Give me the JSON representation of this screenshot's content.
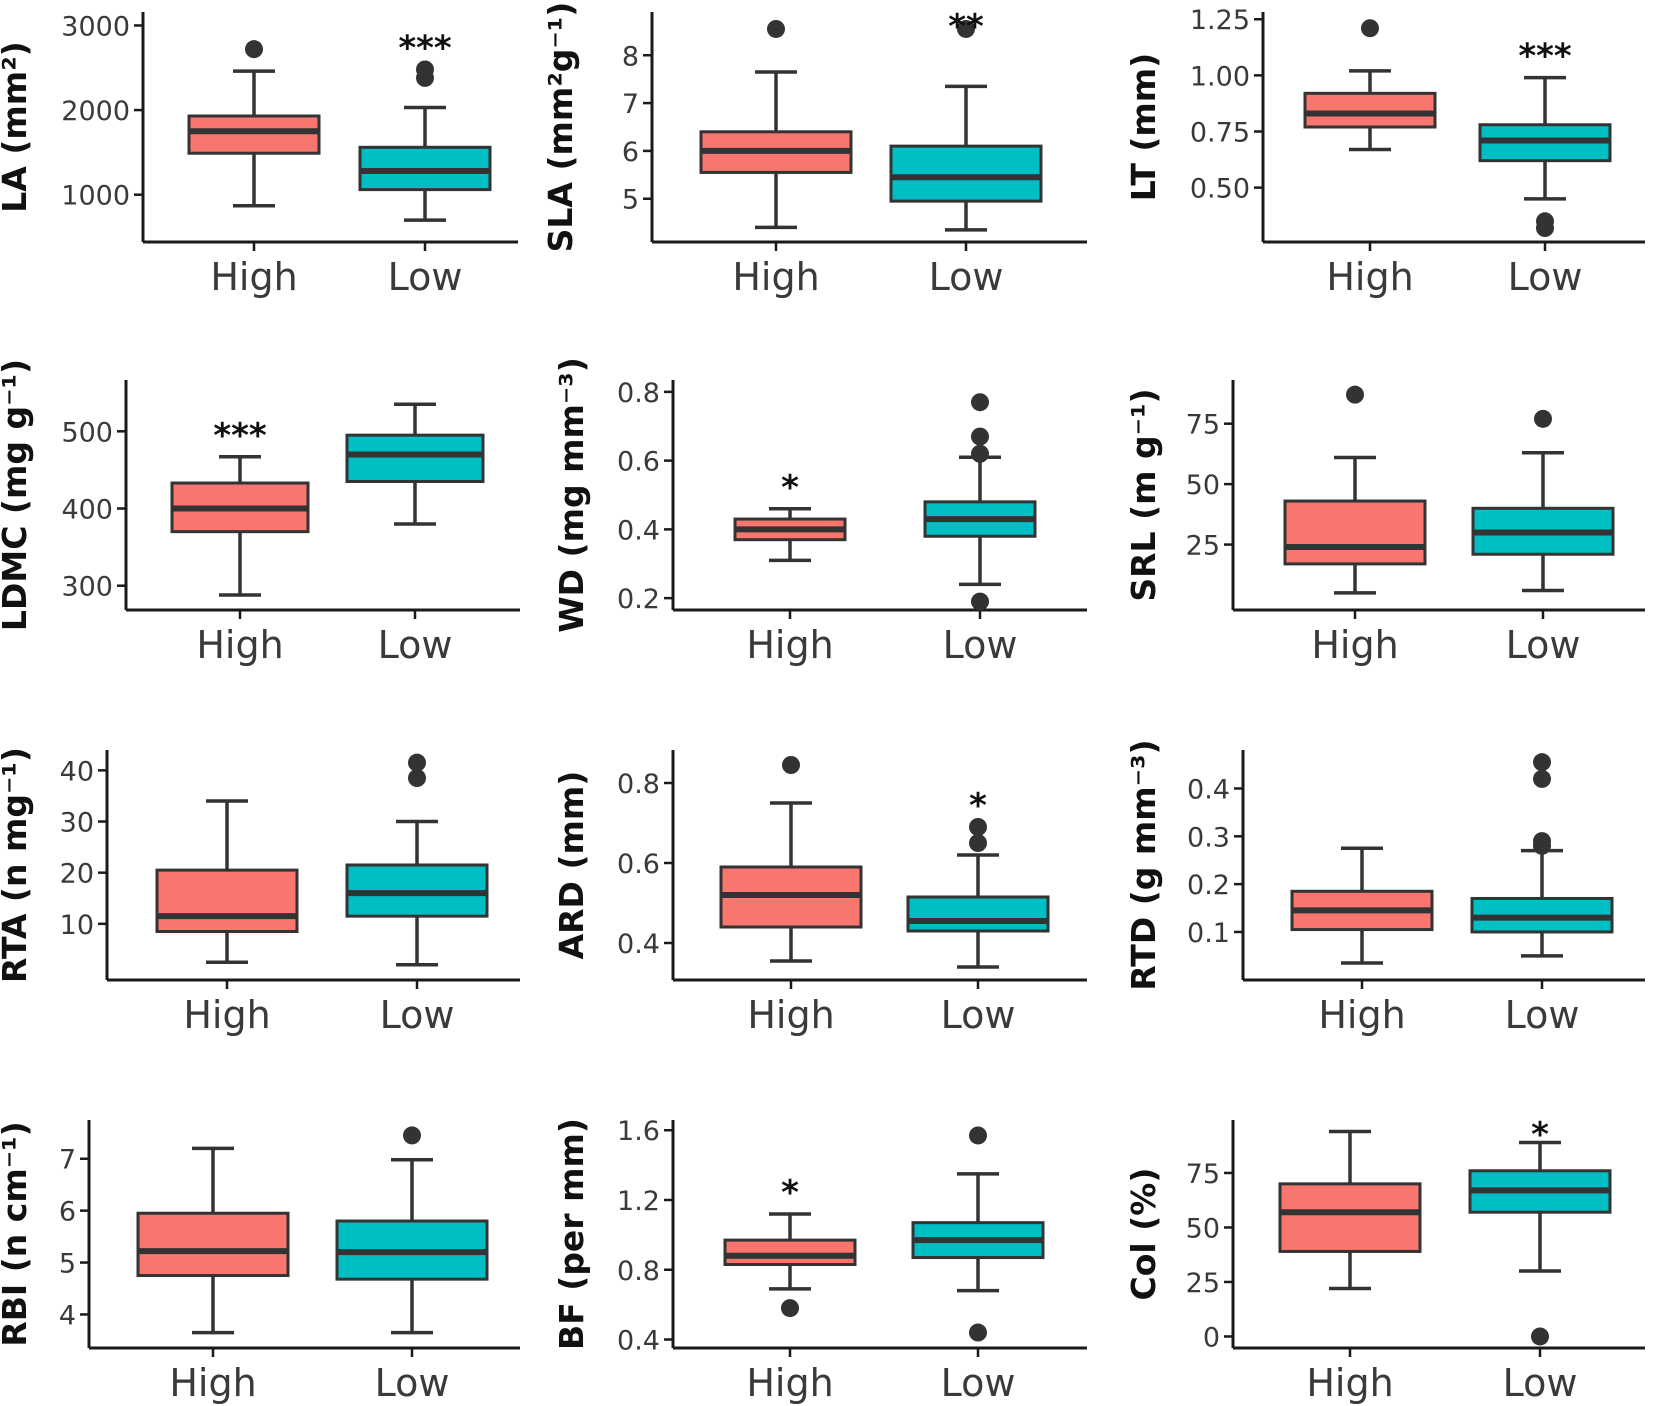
{
  "chart_data": [
    {
      "type": "box",
      "id": "la",
      "ylabel": "LA (mm²)",
      "ylim": [
        500,
        3100
      ],
      "yticks": [
        1000,
        2000,
        3000
      ],
      "categories": [
        "High",
        "Low"
      ],
      "colors": [
        "#F8766D",
        "#00BFC4"
      ],
      "boxes": [
        {
          "low": 870,
          "q1": 1490,
          "median": 1750,
          "q3": 1930,
          "high": 2460,
          "outliers": [
            2720
          ]
        },
        {
          "low": 700,
          "q1": 1060,
          "median": 1280,
          "q3": 1560,
          "high": 2030,
          "outliers": [
            2480,
            2380
          ]
        }
      ],
      "significance": [
        "",
        "***"
      ]
    },
    {
      "type": "box",
      "id": "sla",
      "ylabel": "SLA (mm²g⁻¹)",
      "ylim": [
        4.2,
        8.8
      ],
      "yticks": [
        5,
        6,
        7,
        8
      ],
      "categories": [
        "High",
        "Low"
      ],
      "colors": [
        "#F8766D",
        "#00BFC4"
      ],
      "boxes": [
        {
          "low": 4.4,
          "q1": 5.55,
          "median": 6.0,
          "q3": 6.4,
          "high": 7.65,
          "outliers": [
            8.55
          ]
        },
        {
          "low": 4.35,
          "q1": 4.95,
          "median": 5.45,
          "q3": 6.1,
          "high": 7.35,
          "outliers": [
            8.55
          ]
        }
      ],
      "significance": [
        "",
        "**"
      ]
    },
    {
      "type": "box",
      "id": "lt",
      "ylabel": "LT (mm)",
      "ylim": [
        0.28,
        1.26
      ],
      "yticks": [
        0.5,
        0.75,
        1.0,
        1.25
      ],
      "ytick_labels": [
        "0.50",
        "0.75",
        "1.00",
        "1.25"
      ],
      "categories": [
        "High",
        "Low"
      ],
      "colors": [
        "#F8766D",
        "#00BFC4"
      ],
      "boxes": [
        {
          "low": 0.67,
          "q1": 0.77,
          "median": 0.83,
          "q3": 0.92,
          "high": 1.02,
          "outliers": [
            1.21
          ]
        },
        {
          "low": 0.45,
          "q1": 0.62,
          "median": 0.71,
          "q3": 0.78,
          "high": 0.99,
          "outliers": [
            0.35,
            0.32
          ]
        }
      ],
      "significance": [
        "",
        "***"
      ]
    },
    {
      "type": "box",
      "id": "ldmc",
      "ylabel": "LDMC (mg g⁻¹)",
      "ylim": [
        275,
        560
      ],
      "yticks": [
        300,
        400,
        500
      ],
      "categories": [
        "High",
        "Low"
      ],
      "colors": [
        "#F8766D",
        "#00BFC4"
      ],
      "boxes": [
        {
          "low": 288,
          "q1": 370,
          "median": 400,
          "q3": 433,
          "high": 467,
          "outliers": []
        },
        {
          "low": 380,
          "q1": 435,
          "median": 470,
          "q3": 495,
          "high": 535,
          "outliers": []
        }
      ],
      "significance": [
        "***",
        ""
      ]
    },
    {
      "type": "box",
      "id": "wd",
      "ylabel": "WD (mg mm⁻³)",
      "ylim": [
        0.18,
        0.82
      ],
      "yticks": [
        0.2,
        0.4,
        0.6,
        0.8
      ],
      "ytick_labels": [
        "0.2",
        "0.4",
        "0.6",
        "0.8"
      ],
      "categories": [
        "High",
        "Low"
      ],
      "colors": [
        "#F8766D",
        "#00BFC4"
      ],
      "boxes": [
        {
          "low": 0.31,
          "q1": 0.37,
          "median": 0.4,
          "q3": 0.43,
          "high": 0.46,
          "outliers": []
        },
        {
          "low": 0.24,
          "q1": 0.38,
          "median": 0.43,
          "q3": 0.48,
          "high": 0.61,
          "outliers": [
            0.77,
            0.67,
            0.62,
            0.19
          ]
        }
      ],
      "significance": [
        "*",
        ""
      ]
    },
    {
      "type": "box",
      "id": "srl",
      "ylabel": "SRL (m g⁻¹)",
      "ylim": [
        0,
        91
      ],
      "yticks": [
        25,
        50,
        75
      ],
      "categories": [
        "High",
        "Low"
      ],
      "colors": [
        "#F8766D",
        "#00BFC4"
      ],
      "boxes": [
        {
          "low": 5,
          "q1": 17,
          "median": 24,
          "q3": 43,
          "high": 61,
          "outliers": [
            87
          ]
        },
        {
          "low": 6,
          "q1": 21,
          "median": 30,
          "q3": 40,
          "high": 63,
          "outliers": [
            77
          ]
        }
      ],
      "significance": [
        "",
        ""
      ]
    },
    {
      "type": "box",
      "id": "rta",
      "ylabel": "RTA (n mg⁻¹)",
      "ylim": [
        0,
        43
      ],
      "yticks": [
        10,
        20,
        30,
        40
      ],
      "categories": [
        "High",
        "Low"
      ],
      "colors": [
        "#F8766D",
        "#00BFC4"
      ],
      "boxes": [
        {
          "low": 2.5,
          "q1": 8.5,
          "median": 11.5,
          "q3": 20.5,
          "high": 34,
          "outliers": []
        },
        {
          "low": 2,
          "q1": 11.5,
          "median": 16,
          "q3": 21.5,
          "high": 30,
          "outliers": [
            41.5,
            38.5
          ]
        }
      ],
      "significance": [
        "",
        ""
      ]
    },
    {
      "type": "box",
      "id": "ard",
      "ylabel": "ARD (mm)",
      "ylim": [
        0.32,
        0.87
      ],
      "yticks": [
        0.4,
        0.6,
        0.8
      ],
      "ytick_labels": [
        "0.4",
        "0.6",
        "0.8"
      ],
      "categories": [
        "High",
        "Low"
      ],
      "colors": [
        "#F8766D",
        "#00BFC4"
      ],
      "boxes": [
        {
          "low": 0.355,
          "q1": 0.44,
          "median": 0.52,
          "q3": 0.59,
          "high": 0.75,
          "outliers": [
            0.845
          ]
        },
        {
          "low": 0.34,
          "q1": 0.43,
          "median": 0.455,
          "q3": 0.515,
          "high": 0.62,
          "outliers": [
            0.69,
            0.65
          ]
        }
      ],
      "significance": [
        "",
        "*"
      ]
    },
    {
      "type": "box",
      "id": "rtd",
      "ylabel": "RTD (g mm⁻³)",
      "ylim": [
        0.01,
        0.47
      ],
      "yticks": [
        0.1,
        0.2,
        0.3,
        0.4
      ],
      "ytick_labels": [
        "0.1",
        "0.2",
        "0.3",
        "0.4"
      ],
      "categories": [
        "High",
        "Low"
      ],
      "colors": [
        "#F8766D",
        "#00BFC4"
      ],
      "boxes": [
        {
          "low": 0.035,
          "q1": 0.105,
          "median": 0.145,
          "q3": 0.185,
          "high": 0.275,
          "outliers": []
        },
        {
          "low": 0.05,
          "q1": 0.1,
          "median": 0.13,
          "q3": 0.17,
          "high": 0.27,
          "outliers": [
            0.455,
            0.42,
            0.29,
            0.28
          ]
        }
      ],
      "significance": [
        "",
        ""
      ]
    },
    {
      "type": "box",
      "id": "rbi",
      "ylabel": "RBI (n cm⁻¹)",
      "ylim": [
        3.45,
        7.65
      ],
      "yticks": [
        4,
        5,
        6,
        7
      ],
      "categories": [
        "High",
        "Low"
      ],
      "colors": [
        "#F8766D",
        "#00BFC4"
      ],
      "boxes": [
        {
          "low": 3.65,
          "q1": 4.75,
          "median": 5.22,
          "q3": 5.95,
          "high": 7.2,
          "outliers": []
        },
        {
          "low": 3.65,
          "q1": 4.68,
          "median": 5.2,
          "q3": 5.8,
          "high": 6.98,
          "outliers": [
            7.45
          ]
        }
      ],
      "significance": [
        "",
        ""
      ]
    },
    {
      "type": "box",
      "id": "bf",
      "ylabel": "BF (per mm)",
      "ylim": [
        0.38,
        1.63
      ],
      "yticks": [
        0.4,
        0.8,
        1.2,
        1.6
      ],
      "ytick_labels": [
        "0.4",
        "0.8",
        "1.2",
        "1.6"
      ],
      "categories": [
        "High",
        "Low"
      ],
      "colors": [
        "#F8766D",
        "#00BFC4"
      ],
      "boxes": [
        {
          "low": 0.69,
          "q1": 0.83,
          "median": 0.88,
          "q3": 0.97,
          "high": 1.12,
          "outliers": [
            0.58
          ]
        },
        {
          "low": 0.68,
          "q1": 0.87,
          "median": 0.97,
          "q3": 1.07,
          "high": 1.35,
          "outliers": [
            1.57,
            0.44
          ]
        }
      ],
      "significance": [
        "*",
        ""
      ]
    },
    {
      "type": "box",
      "id": "col",
      "ylabel": "Col (%)",
      "ylim": [
        -3,
        97
      ],
      "yticks": [
        0,
        25,
        50,
        75
      ],
      "categories": [
        "High",
        "Low"
      ],
      "colors": [
        "#F8766D",
        "#00BFC4"
      ],
      "boxes": [
        {
          "low": 22,
          "q1": 39,
          "median": 57,
          "q3": 70,
          "high": 94,
          "outliers": []
        },
        {
          "low": 30,
          "q1": 57,
          "median": 67,
          "q3": 76,
          "high": 89,
          "outliers": [
            0
          ]
        }
      ],
      "significance": [
        "",
        "*"
      ]
    }
  ]
}
